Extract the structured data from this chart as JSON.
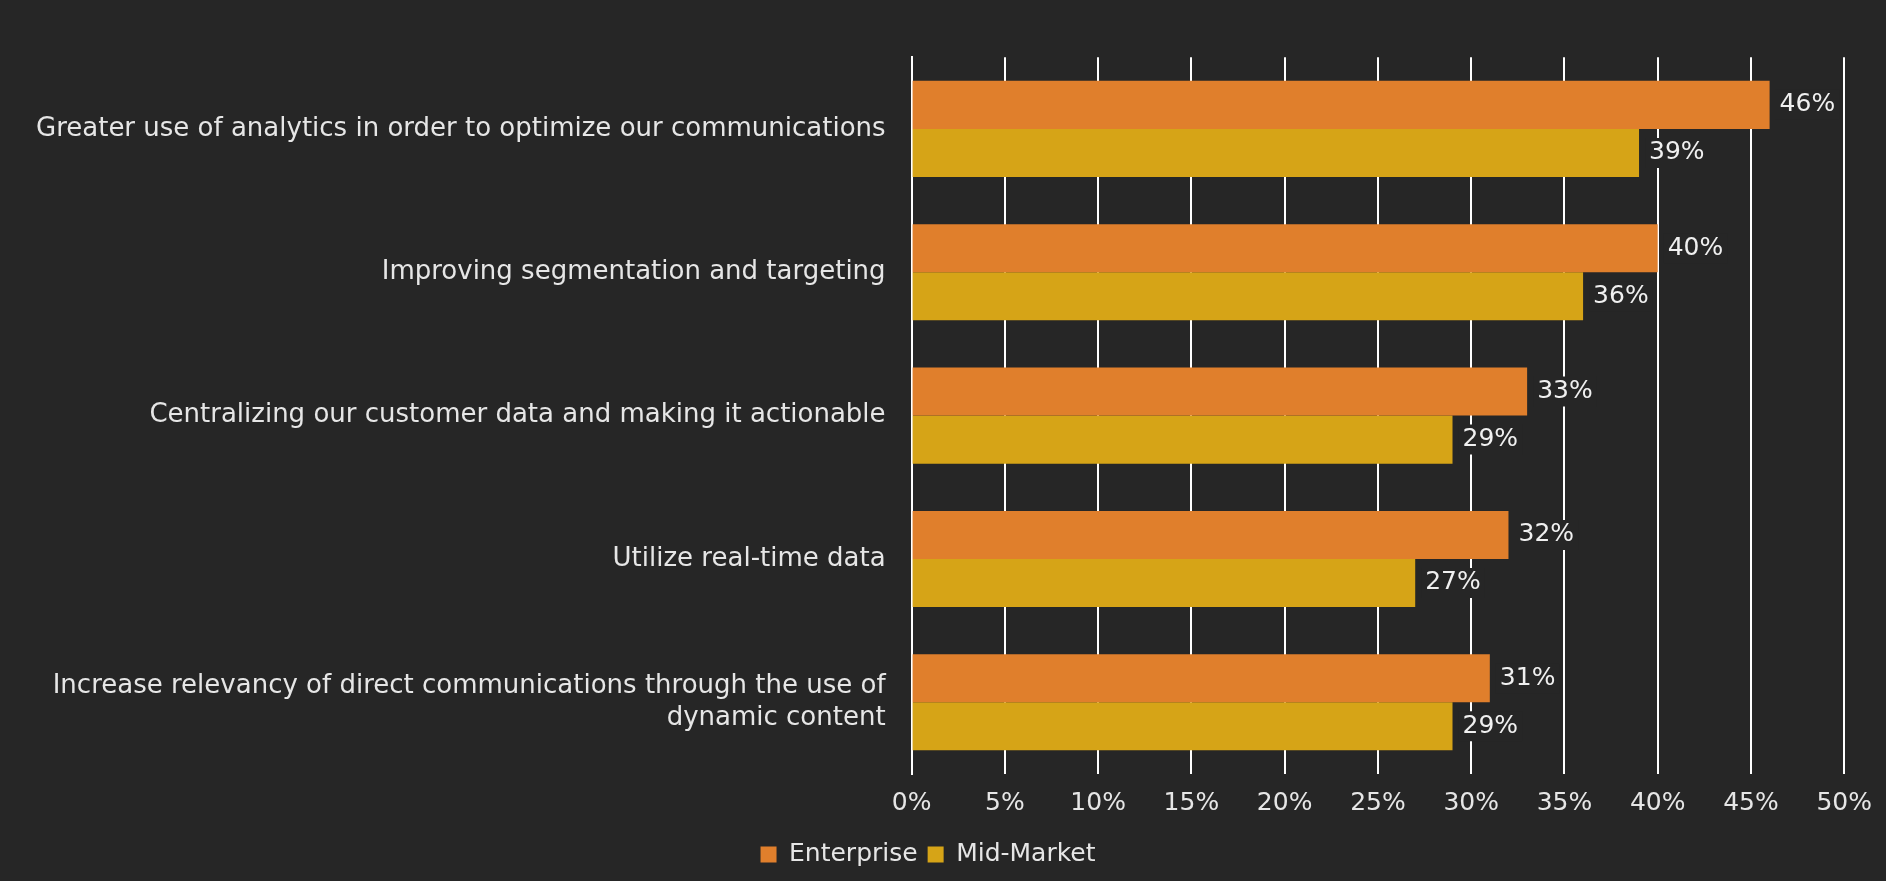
{
  "chart_data": {
    "type": "bar",
    "orientation": "horizontal",
    "categories": [
      "Greater use of analytics in order to optimize our communications",
      "Improving segmentation and targeting",
      "Centralizing our customer data and making it actionable",
      "Utilize real-time data",
      "Increase relevancy of direct communications through the use of dynamic content"
    ],
    "series": [
      {
        "name": "Enterprise",
        "color": "#e07f2c",
        "values": [
          46,
          40,
          33,
          32,
          31
        ]
      },
      {
        "name": "Mid-Market",
        "color": "#d6a417",
        "values": [
          39,
          36,
          29,
          27,
          29
        ]
      }
    ],
    "xlim": [
      0,
      50
    ],
    "xticks": [
      {
        "value": 0,
        "label": "0%"
      },
      {
        "value": 5,
        "label": "5%"
      },
      {
        "value": 10,
        "label": "10%"
      },
      {
        "value": 15,
        "label": "15%"
      },
      {
        "value": 20,
        "label": "20%"
      },
      {
        "value": 25,
        "label": "25%"
      },
      {
        "value": 30,
        "label": "30%"
      },
      {
        "value": 35,
        "label": "35%"
      },
      {
        "value": 40,
        "label": "40%"
      },
      {
        "value": 45,
        "label": "45%"
      },
      {
        "value": 50,
        "label": "50%"
      }
    ],
    "value_labels": [
      [
        "46%",
        "40%",
        "33%",
        "32%",
        "31%"
      ],
      [
        "39%",
        "36%",
        "29%",
        "27%",
        "29%"
      ]
    ],
    "grid": "x",
    "legend": "bottom"
  }
}
